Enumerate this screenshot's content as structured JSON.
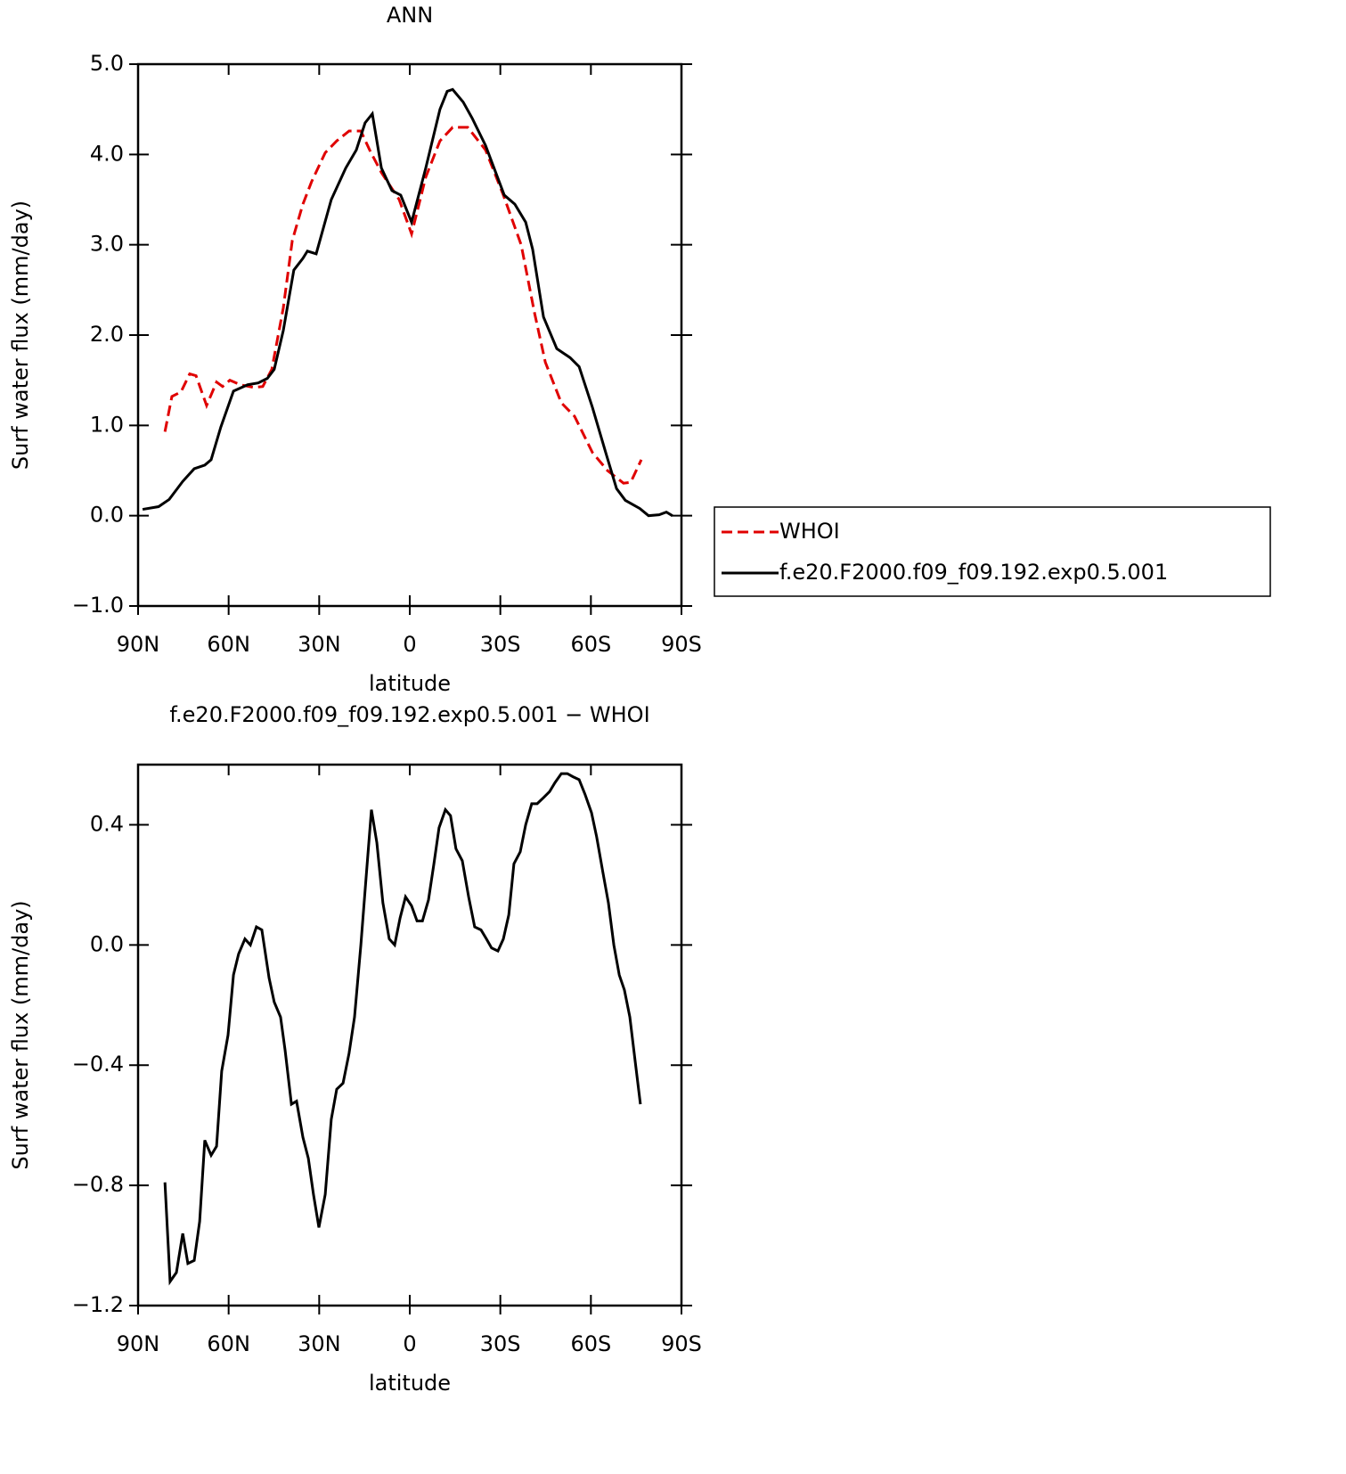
{
  "chart_data": [
    {
      "type": "line",
      "title": "ANN",
      "xlabel": "latitude",
      "ylabel": "Surf water flux (mm/day)",
      "xlim": [
        90,
        -90
      ],
      "xticks": [
        {
          "value": 90,
          "label": "90N"
        },
        {
          "value": 60,
          "label": "60N"
        },
        {
          "value": 30,
          "label": "30N"
        },
        0,
        {
          "value": -30,
          "label": "30S"
        },
        {
          "value": -60,
          "label": "60S"
        },
        {
          "value": -90,
          "label": "90S"
        }
      ],
      "ylim": [
        -1,
        5
      ],
      "yticks": [
        {
          "value": -1,
          "label": "−1.0"
        },
        {
          "value": 0,
          "label": "0.0"
        },
        {
          "value": 1,
          "label": "1.0"
        },
        {
          "value": 2,
          "label": "2.0"
        },
        {
          "value": 3,
          "label": "3.0"
        },
        {
          "value": 4,
          "label": "4.0"
        },
        {
          "value": 5,
          "label": "5.0"
        }
      ],
      "legend": "outside right",
      "series": [
        {
          "name": "WHOI",
          "color": "#e00000",
          "style": "dashed",
          "x": [
            81.1,
            78.8,
            75.8,
            72.9,
            70.8,
            67.3,
            64.0,
            62.0,
            59.6,
            56.1,
            51.6,
            48.7,
            45.7,
            41.9,
            38.9,
            35.4,
            32.5,
            28.0,
            24.2,
            20.1,
            16.2,
            13.3,
            9.4,
            3.5,
            -0.6,
            -5.3,
            -10.0,
            -14.2,
            -19.2,
            -25.1,
            -31.0,
            -36.9,
            -41.3,
            -44.9,
            -50.2,
            -54.6,
            -60.5,
            -65.5,
            -70.8,
            -73.2,
            -76.7
          ],
          "values": [
            0.93,
            1.32,
            1.37,
            1.57,
            1.55,
            1.22,
            1.48,
            1.43,
            1.5,
            1.45,
            1.42,
            1.43,
            1.62,
            2.3,
            3.05,
            3.45,
            3.7,
            4.02,
            4.15,
            4.26,
            4.26,
            4.05,
            3.8,
            3.5,
            3.12,
            3.75,
            4.15,
            4.3,
            4.3,
            4.05,
            3.55,
            3.0,
            2.25,
            1.7,
            1.25,
            1.1,
            0.7,
            0.5,
            0.36,
            0.37,
            0.62
          ]
        },
        {
          "name": "f.e20.F2000.f09_f09.192.exp0.5.001",
          "color": "#000000",
          "style": "solid",
          "x": [
            88.5,
            83.2,
            79.7,
            75.2,
            71.4,
            67.9,
            65.8,
            62.6,
            58.4,
            53.7,
            50.2,
            47.2,
            44.9,
            41.9,
            38.4,
            35.4,
            33.9,
            31.0,
            26.0,
            21.2,
            17.7,
            14.8,
            12.4,
            9.4,
            5.9,
            3.0,
            -0.6,
            -5.3,
            -10.0,
            -12.4,
            -14.2,
            -17.7,
            -20.7,
            -25.1,
            -31.3,
            -34.8,
            -38.4,
            -40.7,
            -44.3,
            -48.7,
            -53.1,
            -56.1,
            -60.5,
            -64.9,
            -68.5,
            -71.4,
            -76.2,
            -79.1,
            -82.6,
            -85.0,
            -87.0
          ],
          "values": [
            0.07,
            0.1,
            0.18,
            0.38,
            0.52,
            0.56,
            0.62,
            0.98,
            1.38,
            1.45,
            1.47,
            1.52,
            1.62,
            2.05,
            2.72,
            2.85,
            2.93,
            2.9,
            3.5,
            3.85,
            4.05,
            4.35,
            4.45,
            3.85,
            3.6,
            3.55,
            3.25,
            3.85,
            4.5,
            4.7,
            4.72,
            4.58,
            4.4,
            4.1,
            3.55,
            3.45,
            3.25,
            2.95,
            2.2,
            1.85,
            1.75,
            1.65,
            1.2,
            0.7,
            0.3,
            0.17,
            0.08,
            0.0,
            0.01,
            0.04,
            0.0
          ]
        }
      ]
    },
    {
      "type": "line",
      "title": "f.e20.F2000.f09_f09.192.exp0.5.001 − WHOI",
      "xlabel": "latitude",
      "ylabel": "Surf water flux (mm/day)",
      "xlim": [
        90,
        -90
      ],
      "xticks": [
        {
          "value": 90,
          "label": "90N"
        },
        {
          "value": 60,
          "label": "60N"
        },
        {
          "value": 30,
          "label": "30N"
        },
        0,
        {
          "value": -30,
          "label": "30S"
        },
        {
          "value": -60,
          "label": "60S"
        },
        {
          "value": -90,
          "label": "90S"
        }
      ],
      "ylim": [
        -1.2,
        0.6
      ],
      "yticks": [
        {
          "value": -1.2,
          "label": "−1.2"
        },
        {
          "value": -0.8,
          "label": "−0.8"
        },
        {
          "value": -0.4,
          "label": "−0.4"
        },
        {
          "value": 0,
          "label": "0.0"
        },
        0.4
      ],
      "series": [
        {
          "color": "#000000",
          "style": "solid",
          "x": [
            81.1,
            79.4,
            77.3,
            75.2,
            73.5,
            71.4,
            69.6,
            67.9,
            65.8,
            64.0,
            62.3,
            60.2,
            58.4,
            56.7,
            54.6,
            52.8,
            50.8,
            49.0,
            46.6,
            44.9,
            42.8,
            41.3,
            39.2,
            37.5,
            35.4,
            33.6,
            31.9,
            30.1,
            28.0,
            26.0,
            24.2,
            22.1,
            20.1,
            18.3,
            16.2,
            14.5,
            12.7,
            10.9,
            8.9,
            6.8,
            5.0,
            3.2,
            1.4,
            -0.6,
            -2.4,
            -4.2,
            -6.2,
            -8.0,
            -9.7,
            -11.8,
            -13.5,
            -15.3,
            -17.4,
            -19.5,
            -21.5,
            -23.6,
            -25.4,
            -27.1,
            -29.2,
            -31.0,
            -32.8,
            -34.5,
            -36.6,
            -38.4,
            -40.4,
            -42.2,
            -44.3,
            -46.3,
            -48.1,
            -50.2,
            -52.2,
            -54.0,
            -56.1,
            -58.1,
            -60.2,
            -61.9,
            -64.0,
            -65.8,
            -67.6,
            -69.4,
            -71.1,
            -72.9,
            -74.7,
            -76.4
          ],
          "values": [
            -0.79,
            -1.12,
            -1.09,
            -0.96,
            -1.06,
            -1.05,
            -0.92,
            -0.65,
            -0.7,
            -0.67,
            -0.42,
            -0.3,
            -0.1,
            -0.03,
            0.02,
            0.0,
            0.06,
            0.05,
            -0.11,
            -0.19,
            -0.24,
            -0.35,
            -0.53,
            -0.52,
            -0.64,
            -0.71,
            -0.83,
            -0.94,
            -0.83,
            -0.58,
            -0.48,
            -0.46,
            -0.36,
            -0.24,
            0.0,
            0.22,
            0.45,
            0.34,
            0.14,
            0.02,
            0.0,
            0.09,
            0.16,
            0.13,
            0.08,
            0.08,
            0.15,
            0.27,
            0.39,
            0.45,
            0.43,
            0.32,
            0.28,
            0.16,
            0.06,
            0.05,
            0.02,
            -0.01,
            -0.02,
            0.02,
            0.1,
            0.27,
            0.31,
            0.4,
            0.47,
            0.47,
            0.49,
            0.51,
            0.54,
            0.57,
            0.57,
            0.56,
            0.55,
            0.5,
            0.44,
            0.36,
            0.24,
            0.14,
            0.0,
            -0.1,
            -0.15,
            -0.24,
            -0.39,
            -0.53
          ]
        }
      ]
    }
  ]
}
